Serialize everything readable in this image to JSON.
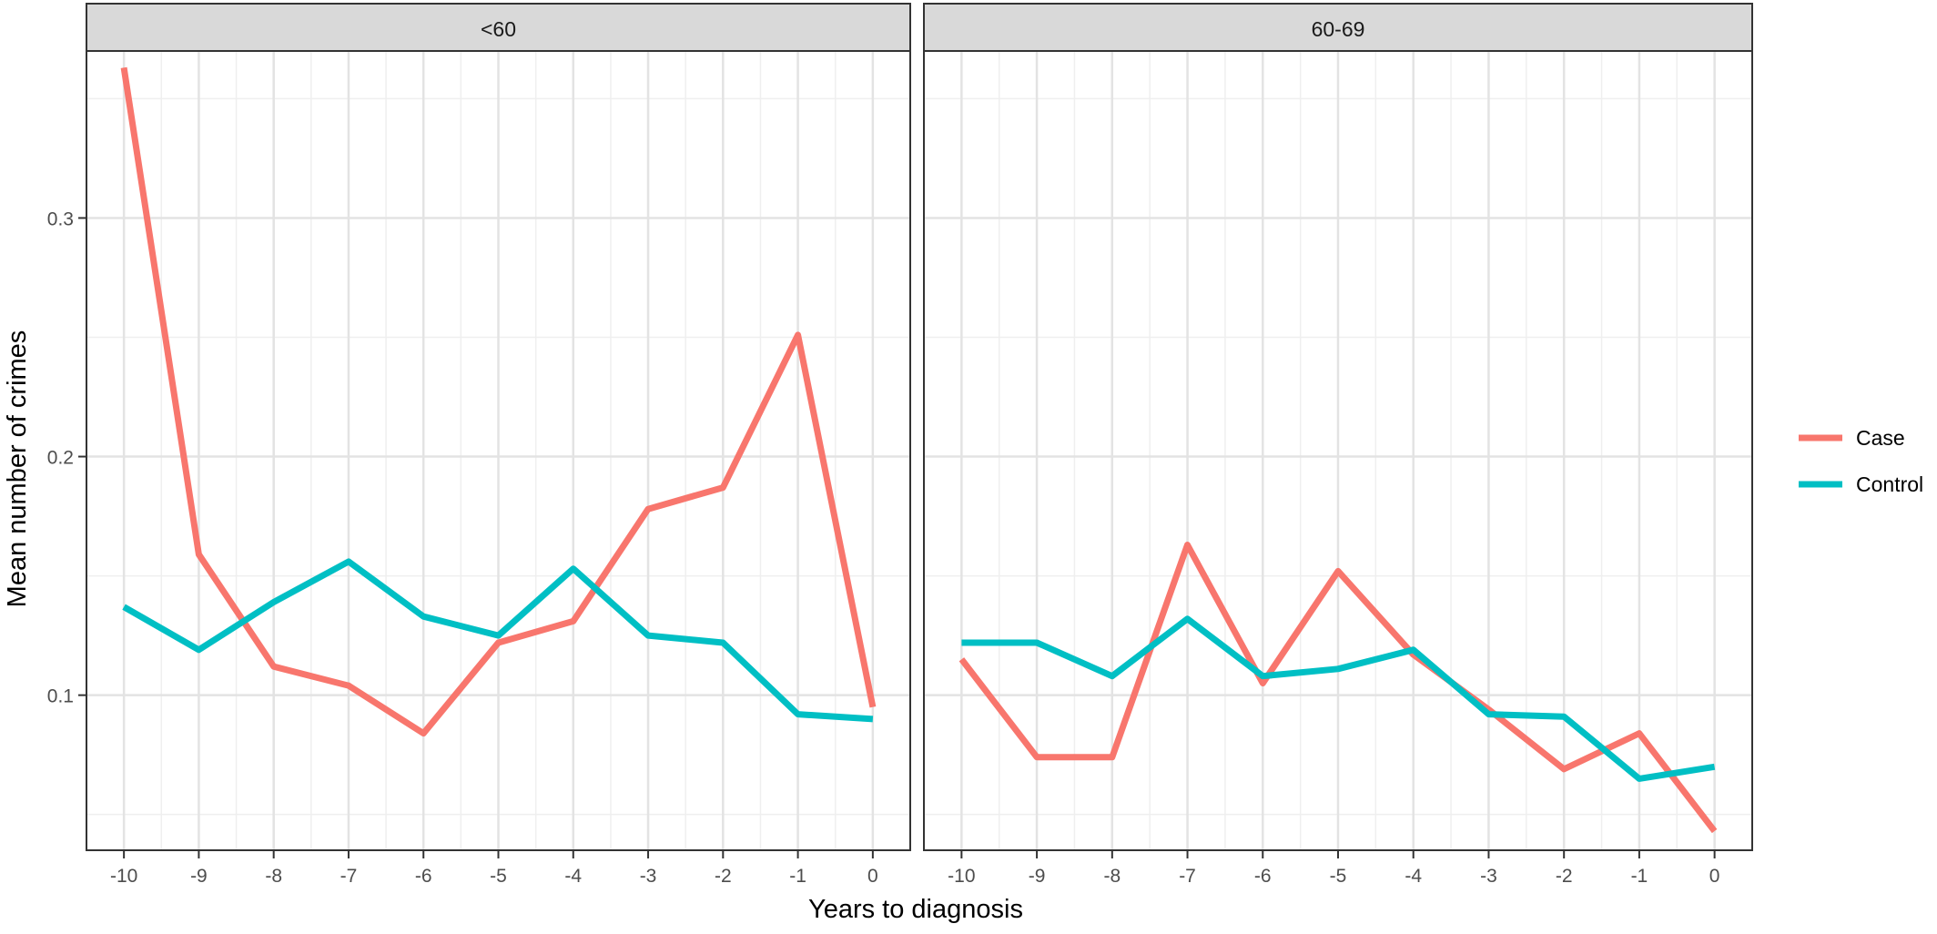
{
  "chart_data": {
    "type": "line",
    "xlabel": "Years to diagnosis",
    "ylabel": "Mean number of crimes",
    "x": [
      -10,
      -9,
      -8,
      -7,
      -6,
      -5,
      -4,
      -3,
      -2,
      -1,
      0
    ],
    "xticks": [
      "-10",
      "-9",
      "-8",
      "-7",
      "-6",
      "-5",
      "-4",
      "-3",
      "-2",
      "-1",
      "0"
    ],
    "xlim": [
      -10.5,
      0.5
    ],
    "ylim": [
      0.035,
      0.37
    ],
    "yticks": [
      0.1,
      0.2,
      0.3
    ],
    "ytick_labels": [
      "0.1",
      "0.2",
      "0.3"
    ],
    "grid": true,
    "legend_position": "right",
    "legend": [
      {
        "name": "Case",
        "color": "#F8766D"
      },
      {
        "name": "Control",
        "color": "#00BFC4"
      }
    ],
    "panels": [
      {
        "strip": "<60",
        "series": [
          {
            "name": "Case",
            "color": "#F8766D",
            "values": [
              0.363,
              0.159,
              0.112,
              0.104,
              0.084,
              0.122,
              0.131,
              0.178,
              0.187,
              0.251,
              0.095
            ]
          },
          {
            "name": "Control",
            "color": "#00BFC4",
            "values": [
              0.137,
              0.119,
              0.139,
              0.156,
              0.133,
              0.125,
              0.153,
              0.125,
              0.122,
              0.092,
              0.09
            ]
          }
        ]
      },
      {
        "strip": "60-69",
        "series": [
          {
            "name": "Case",
            "color": "#F8766D",
            "values": [
              0.115,
              0.074,
              0.074,
              0.163,
              0.105,
              0.152,
              0.117,
              0.094,
              0.069,
              0.084,
              0.043
            ]
          },
          {
            "name": "Control",
            "color": "#00BFC4",
            "values": [
              0.122,
              0.122,
              0.108,
              0.132,
              0.108,
              0.111,
              0.119,
              0.092,
              0.091,
              0.065,
              0.07
            ]
          }
        ]
      }
    ]
  }
}
